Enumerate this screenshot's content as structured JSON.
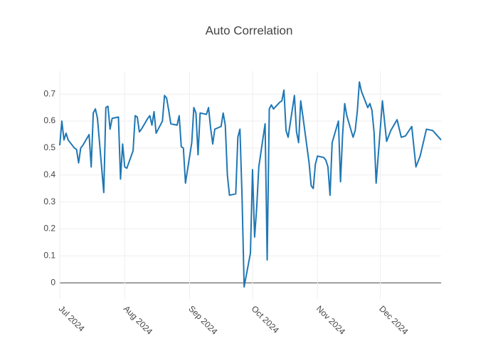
{
  "chart_data": {
    "type": "line",
    "title": "Auto Correlation",
    "x": [
      "2024-07-01",
      "2024-07-02",
      "2024-07-03",
      "2024-07-04",
      "2024-07-05",
      "2024-07-08",
      "2024-07-09",
      "2024-07-10",
      "2024-07-11",
      "2024-07-12",
      "2024-07-15",
      "2024-07-16",
      "2024-07-17",
      "2024-07-18",
      "2024-07-19",
      "2024-07-22",
      "2024-07-23",
      "2024-07-24",
      "2024-07-25",
      "2024-07-26",
      "2024-07-29",
      "2024-07-30",
      "2024-07-31",
      "2024-08-01",
      "2024-08-02",
      "2024-08-05",
      "2024-08-06",
      "2024-08-07",
      "2024-08-08",
      "2024-08-09",
      "2024-08-12",
      "2024-08-13",
      "2024-08-14",
      "2024-08-15",
      "2024-08-16",
      "2024-08-19",
      "2024-08-20",
      "2024-08-21",
      "2024-08-22",
      "2024-08-23",
      "2024-08-26",
      "2024-08-27",
      "2024-08-28",
      "2024-08-29",
      "2024-08-30",
      "2024-09-02",
      "2024-09-03",
      "2024-09-04",
      "2024-09-05",
      "2024-09-06",
      "2024-09-09",
      "2024-09-10",
      "2024-09-11",
      "2024-09-12",
      "2024-09-13",
      "2024-09-16",
      "2024-09-17",
      "2024-09-18",
      "2024-09-19",
      "2024-09-20",
      "2024-09-23",
      "2024-09-24",
      "2024-09-25",
      "2024-09-26",
      "2024-09-27",
      "2024-09-30",
      "2024-10-01",
      "2024-10-02",
      "2024-10-03",
      "2024-10-04",
      "2024-10-07",
      "2024-10-08",
      "2024-10-09",
      "2024-10-10",
      "2024-10-11",
      "2024-10-14",
      "2024-10-15",
      "2024-10-16",
      "2024-10-17",
      "2024-10-18",
      "2024-10-21",
      "2024-10-22",
      "2024-10-23",
      "2024-10-24",
      "2024-10-25",
      "2024-10-28",
      "2024-10-29",
      "2024-10-30",
      "2024-10-31",
      "2024-11-01",
      "2024-11-04",
      "2024-11-05",
      "2024-11-06",
      "2024-11-07",
      "2024-11-08",
      "2024-11-11",
      "2024-11-12",
      "2024-11-13",
      "2024-11-14",
      "2024-11-15",
      "2024-11-18",
      "2024-11-19",
      "2024-11-20",
      "2024-11-21",
      "2024-11-22",
      "2024-11-25",
      "2024-11-26",
      "2024-11-27",
      "2024-11-28",
      "2024-11-29",
      "2024-12-02",
      "2024-12-04",
      "2024-12-06",
      "2024-12-09",
      "2024-12-11",
      "2024-12-13",
      "2024-12-16",
      "2024-12-18",
      "2024-12-20",
      "2024-12-23",
      "2024-12-26",
      "2024-12-30"
    ],
    "series": [
      {
        "color": "#1f77b4",
        "values": [
          0.51,
          0.6,
          0.53,
          0.555,
          0.53,
          0.5,
          0.495,
          0.445,
          0.5,
          0.51,
          0.55,
          0.43,
          0.63,
          0.645,
          0.61,
          0.335,
          0.65,
          0.655,
          0.57,
          0.61,
          0.615,
          0.385,
          0.515,
          0.43,
          0.425,
          0.49,
          0.62,
          0.615,
          0.56,
          0.57,
          0.61,
          0.62,
          0.585,
          0.635,
          0.555,
          0.6,
          0.695,
          0.685,
          0.64,
          0.59,
          0.585,
          0.62,
          0.505,
          0.5,
          0.37,
          0.52,
          0.65,
          0.63,
          0.475,
          0.63,
          0.625,
          0.65,
          0.575,
          0.515,
          0.57,
          0.58,
          0.63,
          0.585,
          0.4,
          0.325,
          0.33,
          0.54,
          0.57,
          0.32,
          -0.015,
          0.11,
          0.42,
          0.17,
          0.28,
          0.43,
          0.59,
          0.085,
          0.645,
          0.66,
          0.645,
          0.67,
          0.675,
          0.715,
          0.565,
          0.54,
          0.695,
          0.56,
          0.52,
          0.675,
          0.62,
          0.445,
          0.36,
          0.35,
          0.44,
          0.47,
          0.465,
          0.455,
          0.43,
          0.325,
          0.52,
          0.6,
          0.375,
          0.55,
          0.665,
          0.62,
          0.54,
          0.565,
          0.635,
          0.745,
          0.71,
          0.65,
          0.665,
          0.64,
          0.56,
          0.37,
          0.675,
          0.525,
          0.565,
          0.605,
          0.54,
          0.545,
          0.58,
          0.43,
          0.47,
          0.57,
          0.565,
          0.53
        ]
      }
    ],
    "xlim": [
      "2024-07-01",
      "2024-12-30"
    ],
    "xticks": [
      {
        "value": "2024-07-01",
        "label": "Jul 2024"
      },
      {
        "value": "2024-08-01",
        "label": "Aug 2024"
      },
      {
        "value": "2024-09-01",
        "label": "Sep 2024"
      },
      {
        "value": "2024-10-01",
        "label": "Oct 2024"
      },
      {
        "value": "2024-11-01",
        "label": "Nov 2024"
      },
      {
        "value": "2024-12-01",
        "label": "Dec 2024"
      }
    ],
    "ylim": [
      -0.06,
      0.785
    ],
    "yticks": [
      0,
      0.1,
      0.2,
      0.3,
      0.4,
      0.5,
      0.6,
      0.7
    ],
    "grid": true
  }
}
